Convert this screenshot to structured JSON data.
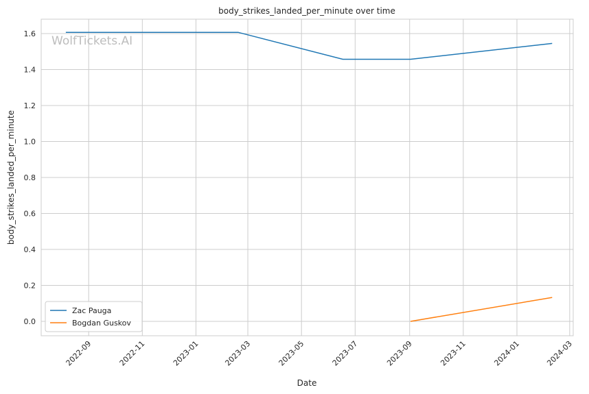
{
  "chart_data": {
    "type": "line",
    "title": "body_strikes_landed_per_minute over time",
    "xlabel": "Date",
    "ylabel": "body_strikes_landed_per_minute",
    "watermark": "WolfTickets.AI",
    "xlim": [
      "2022-07-09",
      "2024-03-05"
    ],
    "ylim": [
      -0.08,
      1.68
    ],
    "x_ticks": [
      "2022-09",
      "2022-11",
      "2023-01",
      "2023-03",
      "2023-05",
      "2023-07",
      "2023-09",
      "2023-11",
      "2024-01",
      "2024-03"
    ],
    "y_ticks": [
      "0.0",
      "0.2",
      "0.4",
      "0.6",
      "0.8",
      "1.0",
      "1.2",
      "1.4",
      "1.6"
    ],
    "grid": true,
    "legend_position": "bottom-left",
    "series": [
      {
        "name": "Zac Pauga",
        "color": "#1f77b4",
        "points": [
          {
            "x": "2022-08-06",
            "y": 1.607
          },
          {
            "x": "2023-02-18",
            "y": 1.607
          },
          {
            "x": "2023-06-17",
            "y": 1.457
          },
          {
            "x": "2023-09-02",
            "y": 1.457
          },
          {
            "x": "2024-02-10",
            "y": 1.545
          }
        ]
      },
      {
        "name": "Bogdan Guskov",
        "color": "#ff7f0e",
        "points": [
          {
            "x": "2023-09-02",
            "y": 0.0
          },
          {
            "x": "2024-02-10",
            "y": 0.133
          }
        ]
      }
    ]
  }
}
